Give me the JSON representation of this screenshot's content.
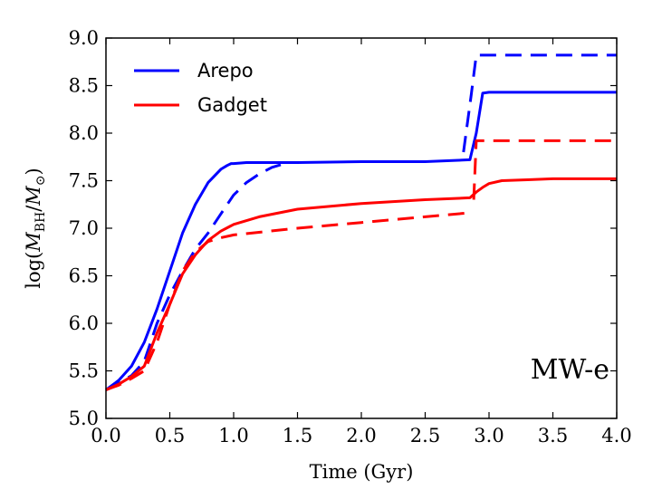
{
  "chart_data": {
    "type": "line",
    "xlabel": "Time (Gyr)",
    "ylabel": "log(M_BH/M_⊙)",
    "xlim": [
      0.0,
      4.0
    ],
    "ylim": [
      5.0,
      9.0
    ],
    "xticks": [
      "0.0",
      "0.5",
      "1.0",
      "1.5",
      "2.0",
      "2.5",
      "3.0",
      "3.5",
      "4.0"
    ],
    "yticks": [
      "5.0",
      "5.5",
      "6.0",
      "6.5",
      "7.0",
      "7.5",
      "8.0",
      "8.5",
      "9.0"
    ],
    "grid": false,
    "legend": {
      "placement": "top-left",
      "entries": [
        {
          "label": "Arepo",
          "color": "#0000ff"
        },
        {
          "label": "Gadget",
          "color": "#ff0000"
        }
      ]
    },
    "annotation": "MW-e",
    "series": [
      {
        "name": "Arepo",
        "style": "solid",
        "color": "#0000ff",
        "x": [
          0.0,
          0.1,
          0.2,
          0.3,
          0.4,
          0.5,
          0.6,
          0.7,
          0.8,
          0.9,
          0.95,
          0.98,
          1.0,
          1.1,
          1.5,
          2.0,
          2.5,
          2.85,
          2.9,
          2.95,
          3.0,
          4.0
        ],
        "y": [
          5.3,
          5.4,
          5.55,
          5.8,
          6.15,
          6.55,
          6.95,
          7.25,
          7.48,
          7.62,
          7.66,
          7.68,
          7.68,
          7.69,
          7.69,
          7.7,
          7.7,
          7.72,
          8.0,
          8.42,
          8.43,
          8.43
        ]
      },
      {
        "name": "Arepo",
        "style": "dashed",
        "color": "#0000ff",
        "x": [
          0.0,
          0.1,
          0.2,
          0.3,
          0.4,
          0.5,
          0.6,
          0.7,
          0.8,
          0.9,
          1.0,
          1.1,
          1.2,
          1.3,
          1.4
        ],
        "y": [
          5.3,
          5.37,
          5.45,
          5.6,
          6.0,
          6.3,
          6.55,
          6.78,
          6.95,
          7.15,
          7.35,
          7.48,
          7.57,
          7.64,
          7.68
        ]
      },
      {
        "name": "Arepo",
        "style": "dashed",
        "color": "#0000ff",
        "x": [
          2.8,
          2.86,
          2.9,
          4.0
        ],
        "y": [
          7.8,
          8.4,
          8.82,
          8.82
        ]
      },
      {
        "name": "Gadget",
        "style": "solid",
        "color": "#ff0000",
        "x": [
          0.0,
          0.1,
          0.2,
          0.3,
          0.4,
          0.5,
          0.6,
          0.7,
          0.8,
          0.9,
          1.0,
          1.2,
          1.5,
          2.0,
          2.5,
          2.85,
          2.9,
          2.95,
          3.0,
          3.1,
          3.3,
          3.5,
          4.0
        ],
        "y": [
          5.3,
          5.36,
          5.44,
          5.55,
          5.9,
          6.2,
          6.52,
          6.72,
          6.87,
          6.97,
          7.04,
          7.12,
          7.2,
          7.26,
          7.3,
          7.32,
          7.38,
          7.43,
          7.47,
          7.5,
          7.51,
          7.52,
          7.52
        ]
      },
      {
        "name": "Gadget",
        "style": "dashed",
        "color": "#ff0000",
        "x": [
          0.0,
          0.1,
          0.2,
          0.3,
          0.4,
          0.5,
          0.6,
          0.7,
          0.8,
          0.9,
          1.0,
          1.5,
          2.0,
          2.5,
          2.83
        ],
        "y": [
          5.3,
          5.35,
          5.42,
          5.5,
          5.8,
          6.2,
          6.55,
          6.75,
          6.86,
          6.9,
          6.93,
          7.0,
          7.06,
          7.12,
          7.16
        ]
      },
      {
        "name": "Gadget",
        "style": "dashed",
        "color": "#ff0000",
        "x": [
          2.88,
          2.9,
          4.0
        ],
        "y": [
          7.3,
          7.92,
          7.92
        ]
      }
    ]
  }
}
